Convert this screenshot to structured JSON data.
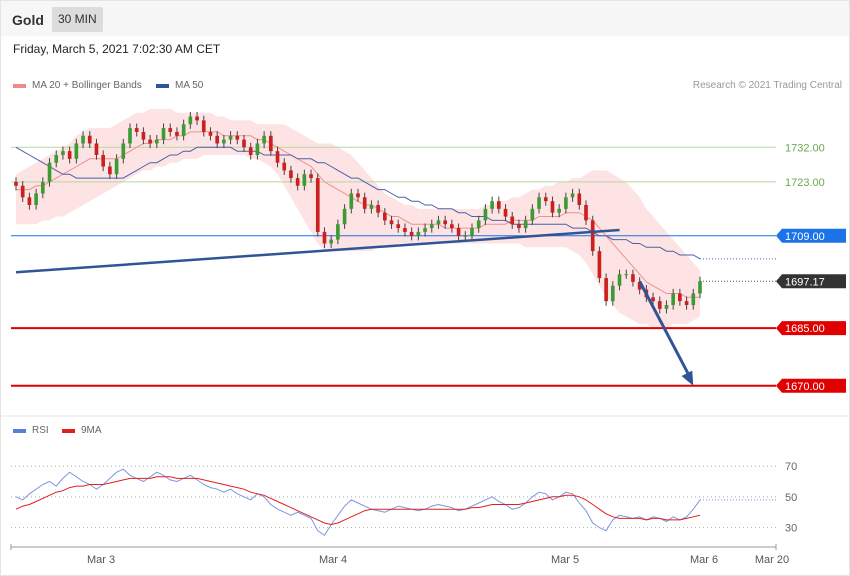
{
  "header": {
    "instrument": "Gold",
    "timeframe": "30 MIN"
  },
  "date_line": "Friday, March 5, 2021 7:02:30 AM CET",
  "legend": {
    "ma20": {
      "label": "MA 20 + Bollinger Bands",
      "color": "#f08a8a"
    },
    "ma50": {
      "label": "MA 50",
      "color": "#2f5597"
    }
  },
  "credit": "Research © 2021 Trading Central",
  "rsi_legend": {
    "rsi": {
      "label": "RSI",
      "color": "#5b7fd6"
    },
    "ma9": {
      "label": "9MA",
      "color": "#e02020"
    }
  },
  "chart_data": [
    {
      "type": "candlestick",
      "ylim": [
        1665,
        1743
      ],
      "x_tick_labels": [
        "Mar 3",
        "Mar 4",
        "Mar 5",
        "Mar 6",
        "Mar 20"
      ],
      "levels": [
        {
          "value": 1732.0,
          "label": "1732.00",
          "color": "#6aa84f",
          "style": "line"
        },
        {
          "value": 1723.0,
          "label": "1723.00",
          "color": "#6aa84f",
          "style": "line"
        },
        {
          "value": 1709.0,
          "label": "1709.00",
          "color": "#1a73e8",
          "style": "tag"
        },
        {
          "value": 1697.17,
          "label": "1697.17",
          "color": "#333333",
          "style": "last"
        },
        {
          "value": 1685.0,
          "label": "1685.00",
          "color": "#e00000",
          "style": "tag"
        },
        {
          "value": 1670.0,
          "label": "1670.00",
          "color": "#e00000",
          "style": "tag"
        }
      ],
      "trendline": {
        "from": [
          0,
          1699.5
        ],
        "to": [
          90,
          1710.5
        ]
      },
      "forecast_arrow": {
        "from": [
          93,
          1697.17
        ],
        "to": [
          101,
          1670.0
        ]
      },
      "closes": [
        1722,
        1719,
        1717,
        1720,
        1723,
        1728,
        1730,
        1731,
        1729,
        1733,
        1735,
        1733,
        1730,
        1727,
        1725,
        1729,
        1733,
        1737,
        1736,
        1734,
        1733,
        1734,
        1737,
        1736,
        1735,
        1738,
        1740,
        1739,
        1736,
        1735,
        1733,
        1734,
        1735,
        1734,
        1732,
        1730,
        1733,
        1735,
        1731,
        1728,
        1726,
        1724,
        1722,
        1725,
        1724,
        1710,
        1707,
        1708,
        1712,
        1716,
        1720,
        1719,
        1716,
        1717,
        1715,
        1713,
        1712,
        1711,
        1710,
        1709,
        1710,
        1711,
        1712,
        1713,
        1712,
        1711,
        1709,
        1709,
        1711,
        1713,
        1716,
        1718,
        1716,
        1714,
        1712,
        1711,
        1713,
        1716,
        1719,
        1718,
        1715,
        1716,
        1719,
        1720,
        1717,
        1713,
        1705,
        1698,
        1692,
        1696,
        1699,
        1699,
        1697,
        1695,
        1693,
        1692,
        1690,
        1691,
        1694,
        1692,
        1691,
        1694,
        1697.17
      ],
      "ma20": [
        1721,
        1721,
        1721,
        1722,
        1722,
        1723,
        1724,
        1725,
        1726,
        1727,
        1728,
        1729,
        1729,
        1729,
        1729,
        1729,
        1730,
        1731,
        1732,
        1733,
        1733,
        1734,
        1734,
        1734,
        1735,
        1735,
        1736,
        1736,
        1736,
        1736,
        1736,
        1735,
        1735,
        1735,
        1735,
        1735,
        1734,
        1734,
        1733,
        1732,
        1731,
        1730,
        1729,
        1728,
        1727,
        1725,
        1723,
        1722,
        1721,
        1720,
        1719,
        1718,
        1717,
        1717,
        1716,
        1715,
        1714,
        1714,
        1713,
        1712,
        1712,
        1712,
        1712,
        1712,
        1711,
        1711,
        1711,
        1711,
        1711,
        1711,
        1712,
        1712,
        1712,
        1712,
        1713,
        1713,
        1713,
        1713,
        1714,
        1714,
        1714,
        1714,
        1715,
        1715,
        1715,
        1714,
        1713,
        1711,
        1709,
        1707,
        1705,
        1703,
        1701,
        1699,
        1697,
        1696,
        1695,
        1694,
        1694,
        1694,
        1693,
        1693,
        1693
      ],
      "bb_upper": [
        1725,
        1726,
        1727,
        1728,
        1729,
        1730,
        1731,
        1732,
        1733,
        1735,
        1736,
        1737,
        1737,
        1737,
        1737,
        1738,
        1739,
        1740,
        1741,
        1741,
        1742,
        1742,
        1742,
        1742,
        1741,
        1741,
        1741,
        1741,
        1741,
        1741,
        1740,
        1740,
        1739,
        1739,
        1739,
        1739,
        1738,
        1738,
        1738,
        1738,
        1738,
        1737,
        1736,
        1735,
        1734,
        1733,
        1733,
        1733,
        1732,
        1731,
        1730,
        1728,
        1726,
        1724,
        1722,
        1720,
        1719,
        1718,
        1717,
        1717,
        1716,
        1716,
        1716,
        1716,
        1716,
        1716,
        1716,
        1716,
        1716,
        1716,
        1717,
        1717,
        1718,
        1718,
        1719,
        1719,
        1720,
        1721,
        1721,
        1722,
        1722,
        1723,
        1723,
        1724,
        1724,
        1725,
        1726,
        1726,
        1726,
        1725,
        1724,
        1723,
        1721,
        1719,
        1716,
        1714,
        1712,
        1710,
        1708,
        1706,
        1704,
        1702,
        1700
      ],
      "bb_lower": [
        1712,
        1712,
        1712,
        1712,
        1713,
        1713,
        1714,
        1714,
        1715,
        1716,
        1717,
        1718,
        1719,
        1720,
        1721,
        1722,
        1723,
        1724,
        1725,
        1726,
        1726,
        1727,
        1727,
        1728,
        1728,
        1729,
        1729,
        1729,
        1730,
        1730,
        1730,
        1730,
        1730,
        1730,
        1730,
        1729,
        1729,
        1728,
        1727,
        1725,
        1722,
        1719,
        1716,
        1713,
        1710,
        1707,
        1705,
        1705,
        1705,
        1705,
        1705,
        1705,
        1705,
        1705,
        1706,
        1706,
        1706,
        1707,
        1707,
        1707,
        1707,
        1707,
        1707,
        1707,
        1707,
        1707,
        1707,
        1707,
        1707,
        1707,
        1707,
        1707,
        1707,
        1707,
        1707,
        1707,
        1706,
        1706,
        1706,
        1706,
        1706,
        1706,
        1706,
        1705,
        1704,
        1702,
        1699,
        1696,
        1693,
        1691,
        1689,
        1688,
        1687,
        1686,
        1686,
        1685,
        1685,
        1685,
        1686,
        1686,
        1686,
        1687,
        1688
      ],
      "ma50": [
        1732,
        1731,
        1730,
        1729,
        1728,
        1727,
        1726,
        1725,
        1725,
        1724,
        1724,
        1724,
        1724,
        1724,
        1724,
        1724,
        1724,
        1725,
        1726,
        1727,
        1728,
        1728,
        1729,
        1730,
        1730,
        1731,
        1731,
        1732,
        1732,
        1732,
        1732,
        1732,
        1732,
        1731,
        1731,
        1731,
        1731,
        1730,
        1730,
        1730,
        1730,
        1730,
        1729,
        1729,
        1729,
        1728,
        1728,
        1727,
        1726,
        1725,
        1724,
        1724,
        1723,
        1722,
        1721,
        1721,
        1720,
        1719,
        1719,
        1718,
        1718,
        1717,
        1717,
        1716,
        1716,
        1716,
        1715,
        1715,
        1714,
        1714,
        1714,
        1713,
        1713,
        1713,
        1712,
        1712,
        1712,
        1712,
        1712,
        1712,
        1712,
        1712,
        1712,
        1711,
        1711,
        1711,
        1710,
        1709,
        1709,
        1708,
        1708,
        1708,
        1707,
        1707,
        1706,
        1706,
        1706,
        1705,
        1705,
        1704,
        1704,
        1704,
        1703
      ]
    },
    {
      "type": "line",
      "title": "RSI",
      "ylim": [
        20,
        85
      ],
      "y_tick_labels": [
        "70",
        "50",
        "30"
      ],
      "series": [
        {
          "name": "RSI",
          "values": [
            50,
            48,
            52,
            55,
            58,
            60,
            57,
            62,
            66,
            63,
            60,
            58,
            55,
            58,
            62,
            66,
            68,
            64,
            62,
            60,
            63,
            66,
            64,
            61,
            60,
            62,
            64,
            61,
            58,
            56,
            55,
            53,
            55,
            52,
            50,
            48,
            52,
            50,
            45,
            42,
            40,
            38,
            40,
            38,
            36,
            28,
            25,
            32,
            38,
            44,
            48,
            46,
            44,
            42,
            41,
            40,
            42,
            44,
            43,
            42,
            41,
            42,
            44,
            45,
            44,
            43,
            41,
            42,
            44,
            46,
            48,
            50,
            47,
            45,
            42,
            43,
            46,
            50,
            53,
            52,
            48,
            50,
            53,
            52,
            46,
            41,
            33,
            30,
            28,
            35,
            38,
            37,
            36,
            37,
            35,
            37,
            36,
            34,
            37,
            35,
            37,
            42,
            48
          ]
        },
        {
          "name": "9MA",
          "values": [
            42,
            44,
            45,
            47,
            49,
            51,
            53,
            54,
            56,
            57,
            57,
            58,
            58,
            58,
            59,
            60,
            61,
            62,
            62,
            62,
            62,
            63,
            63,
            63,
            62,
            62,
            62,
            62,
            61,
            60,
            59,
            58,
            57,
            56,
            55,
            53,
            52,
            51,
            49,
            47,
            45,
            43,
            41,
            39,
            37,
            35,
            33,
            32,
            33,
            35,
            37,
            39,
            41,
            42,
            42,
            42,
            42,
            42,
            42,
            42,
            42,
            42,
            42,
            42,
            42,
            42,
            42,
            42,
            43,
            43,
            44,
            45,
            45,
            45,
            45,
            45,
            46,
            47,
            48,
            49,
            50,
            50,
            51,
            51,
            50,
            48,
            45,
            42,
            39,
            37,
            36,
            36,
            36,
            36,
            35,
            36,
            36,
            35,
            35,
            35,
            36,
            37,
            38
          ]
        }
      ]
    }
  ]
}
